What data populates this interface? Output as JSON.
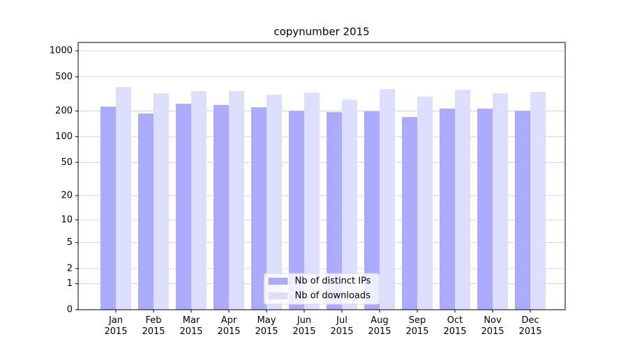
{
  "chart_data": {
    "type": "bar",
    "title": "copynumber 2015",
    "categories": [
      "Jan\n2015",
      "Feb\n2015",
      "Mar\n2015",
      "Apr\n2015",
      "May\n2015",
      "Jun\n2015",
      "Jul\n2015",
      "Aug\n2015",
      "Sep\n2015",
      "Oct\n2015",
      "Nov\n2015",
      "Dec\n2015"
    ],
    "series": [
      {
        "name": "Nb of distinct IPs",
        "color": "#aaaaff",
        "values": [
          225,
          187,
          243,
          235,
          221,
          201,
          194,
          198,
          170,
          213,
          213,
          201
        ]
      },
      {
        "name": "Nb of downloads",
        "color": "#ddddff",
        "values": [
          380,
          321,
          340,
          340,
          309,
          327,
          271,
          359,
          293,
          352,
          321,
          333
        ]
      }
    ],
    "yscale": "log1p",
    "ylim": [
      0,
      1250
    ],
    "yticks": [
      0,
      1,
      2,
      5,
      10,
      20,
      50,
      100,
      200,
      500,
      1000
    ],
    "grid": true,
    "legend": "lower center"
  }
}
